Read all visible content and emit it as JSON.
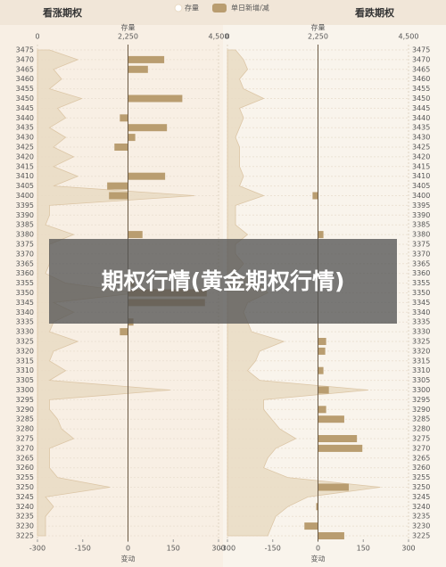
{
  "chart_data": [
    {
      "type": "bar",
      "title": "看涨期权",
      "x2label": "存量",
      "xlabel": "变动",
      "categories": [
        "3475",
        "3470",
        "3465",
        "3460",
        "3455",
        "3450",
        "3445",
        "3440",
        "3435",
        "3430",
        "3425",
        "3420",
        "3415",
        "3410",
        "3405",
        "3400",
        "3395",
        "3390",
        "3385",
        "3380",
        "3375",
        "3370",
        "3365",
        "3360",
        "3355",
        "3350",
        "3345",
        "3340",
        "3335",
        "3330",
        "3325",
        "3320",
        "3315",
        "3310",
        "3305",
        "3300",
        "3295",
        "3290",
        "3285",
        "3280",
        "3275",
        "3270",
        "3265",
        "3260",
        "3255",
        "3250",
        "3245",
        "3240",
        "3235",
        "3230",
        "3225"
      ],
      "x2lim": [
        0,
        4500
      ],
      "x2ticks": [
        0,
        {
          "value": 2250,
          "label": "2,250"
        },
        {
          "value": 4500,
          "label": "4,500"
        }
      ],
      "xlim": [
        -300,
        300
      ],
      "xticks": [
        -300,
        -150,
        0,
        150,
        300
      ],
      "grid": true,
      "series": [
        {
          "name": "存量",
          "color": "#e9dac3",
          "axis": "x2",
          "values": [
            300,
            1000,
            400,
            600,
            300,
            1100,
            500,
            700,
            300,
            700,
            400,
            900,
            400,
            1000,
            400,
            3900,
            300,
            300,
            200,
            900,
            300,
            300,
            300,
            200,
            700,
            2500,
            400,
            900,
            400,
            300,
            1000,
            400,
            300,
            700,
            300,
            3300,
            300,
            300,
            500,
            600,
            900,
            300,
            300,
            300,
            500,
            1800,
            200,
            400,
            200,
            200,
            200
          ]
        },
        {
          "name": "单日新增/减",
          "color": "#b99d70",
          "values": [
            0,
            120,
            66,
            0,
            0,
            180,
            0,
            -27,
            129,
            24,
            -45,
            0,
            0,
            123,
            -69,
            -63,
            0,
            0,
            0,
            48,
            0,
            0,
            0,
            0,
            21,
            261,
            255,
            0,
            18,
            -27,
            0,
            0,
            0,
            0,
            0,
            0,
            0,
            0,
            0,
            0,
            0,
            0,
            0,
            0,
            0,
            0,
            0,
            0,
            0,
            0,
            0
          ]
        }
      ]
    },
    {
      "type": "bar",
      "title": "看跌期权",
      "x2label": "存量",
      "xlabel": "变动",
      "categories": [
        "3475",
        "3470",
        "3465",
        "3460",
        "3455",
        "3450",
        "3445",
        "3440",
        "3435",
        "3430",
        "3425",
        "3420",
        "3415",
        "3410",
        "3405",
        "3400",
        "3395",
        "3390",
        "3385",
        "3380",
        "3375",
        "3370",
        "3365",
        "3360",
        "3355",
        "3350",
        "3345",
        "3340",
        "3335",
        "3330",
        "3325",
        "3320",
        "3315",
        "3310",
        "3305",
        "3300",
        "3295",
        "3290",
        "3285",
        "3280",
        "3275",
        "3270",
        "3265",
        "3260",
        "3255",
        "3250",
        "3245",
        "3240",
        "3235",
        "3230",
        "3225"
      ],
      "x2lim": [
        0,
        4500
      ],
      "x2ticks": [
        0,
        {
          "value": 2250,
          "label": "2,250"
        },
        {
          "value": 4500,
          "label": "4,500"
        }
      ],
      "xlim": [
        -300,
        300
      ],
      "xticks": [
        -300,
        -150,
        0,
        150,
        300
      ],
      "grid": true,
      "series": [
        {
          "color": "#e9dac3",
          "axis": "x2",
          "values": [
            200,
            400,
            500,
            300,
            400,
            900,
            300,
            400,
            300,
            200,
            300,
            300,
            300,
            400,
            300,
            900,
            200,
            200,
            200,
            500,
            200,
            200,
            400,
            200,
            800,
            1000,
            500,
            400,
            500,
            600,
            1400,
            800,
            700,
            500,
            800,
            3500,
            900,
            900,
            1100,
            1300,
            1700,
            1200,
            1000,
            900,
            1500,
            3800,
            2000,
            1500,
            1200,
            1100,
            1000
          ]
        },
        {
          "color": "#b99d70",
          "values": [
            0,
            0,
            0,
            0,
            0,
            0,
            0,
            0,
            0,
            0,
            0,
            0,
            0,
            0,
            0,
            -18,
            0,
            0,
            0,
            18,
            0,
            0,
            0,
            0,
            0,
            0,
            0,
            0,
            0,
            0,
            27,
            24,
            0,
            18,
            0,
            36,
            0,
            27,
            87,
            0,
            129,
            147,
            0,
            0,
            0,
            102,
            0,
            -6,
            0,
            -45,
            87
          ]
        }
      ]
    }
  ],
  "overlay": "期权行情(黄金期权行情)"
}
